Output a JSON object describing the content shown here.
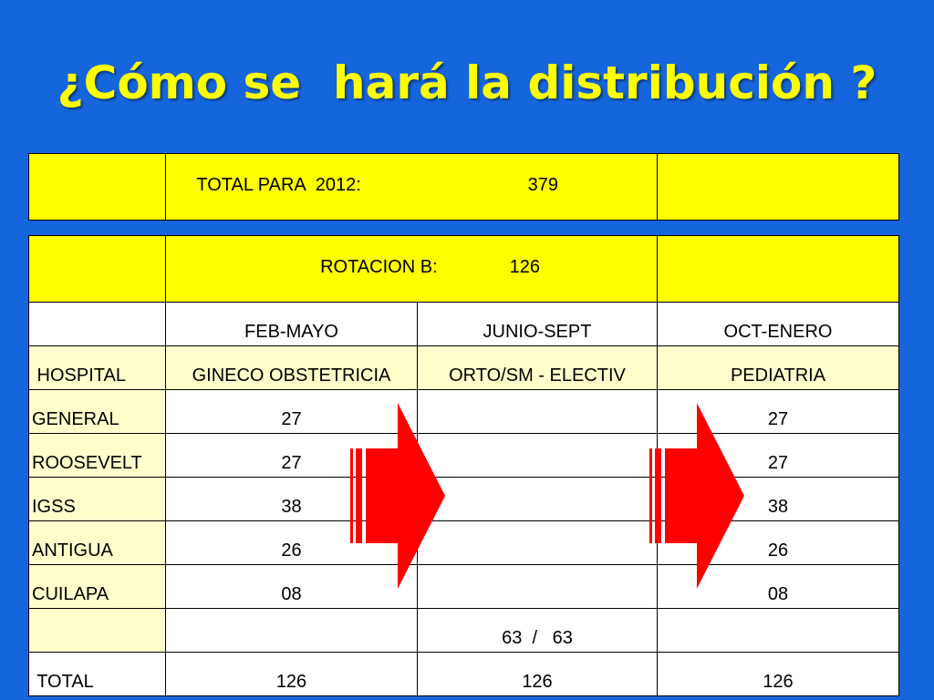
{
  "slide": {
    "title": "¿Cómo se  hará la distribución ?"
  },
  "total_box": {
    "label": "TOTAL PARA  2012:",
    "value": "379"
  },
  "rotation_table": {
    "header_label": "ROTACION B:",
    "header_value": "126",
    "periods": [
      "FEB-MAYO",
      "JUNIO-SEPT",
      "OCT-ENERO"
    ],
    "column_header": " HOSPITAL",
    "specialties": [
      "GINECO OBSTETRICIA",
      "ORTO/SM - ELECTIV",
      "PEDIATRIA"
    ],
    "rows": [
      {
        "hospital": "GENERAL",
        "values": [
          "27",
          "",
          "27"
        ]
      },
      {
        "hospital": "ROOSEVELT",
        "values": [
          "27",
          "",
          "27"
        ]
      },
      {
        "hospital": "IGSS",
        "values": [
          "38",
          "",
          "38"
        ]
      },
      {
        "hospital": "ANTIGUA",
        "values": [
          "26",
          "",
          "26"
        ]
      },
      {
        "hospital": "CUILAPA",
        "values": [
          "08",
          "",
          "08"
        ]
      },
      {
        "hospital": "",
        "values": [
          "",
          "63  /   63",
          ""
        ]
      }
    ],
    "total_row": {
      "label": " TOTAL",
      "values": [
        "126",
        "126",
        "126"
      ]
    }
  },
  "colors": {
    "background": "#1565dc",
    "title": "#ffff00",
    "header_fill": "#ffff00",
    "light_fill": "#ffffcc",
    "arrow": "#ff0000"
  },
  "icons": [
    "right-arrow-icon",
    "right-arrow-icon"
  ]
}
